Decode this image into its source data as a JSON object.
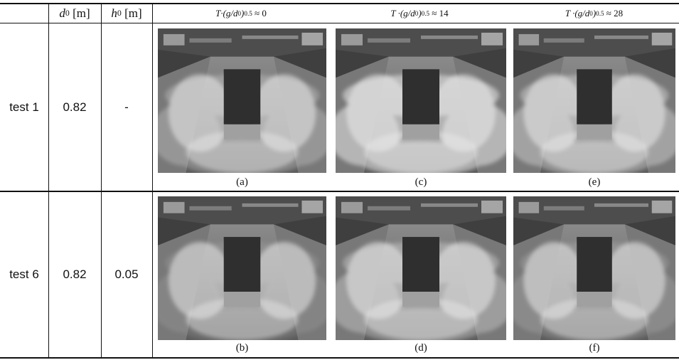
{
  "header": [
    {
      "symbol": "d",
      "subscript": "0",
      "unit": "[m]"
    },
    {
      "symbol": "h",
      "subscript": "0",
      "unit": "[m]"
    },
    {
      "lead": "T·(g/d",
      "subscript": "0",
      "close": ")",
      "superscript": "0.5",
      "relation": "≈ 0"
    },
    {
      "lead": "T ·(g/d",
      "subscript": "0",
      "close": ")",
      "superscript": "0.5",
      "relation": "≈ 14"
    },
    {
      "lead": "T ·(g/d",
      "subscript": "0",
      "close": ")",
      "superscript": "0.5",
      "relation": "≈ 28"
    }
  ],
  "rows": [
    {
      "label": "test 1",
      "d0": "0.82",
      "h0": "-",
      "panels": [
        "(a)",
        "(c)",
        "(e)"
      ]
    },
    {
      "label": "test 6",
      "d0": "0.82",
      "h0": "0.05",
      "panels": [
        "(b)",
        "(d)",
        "(f)"
      ]
    }
  ]
}
